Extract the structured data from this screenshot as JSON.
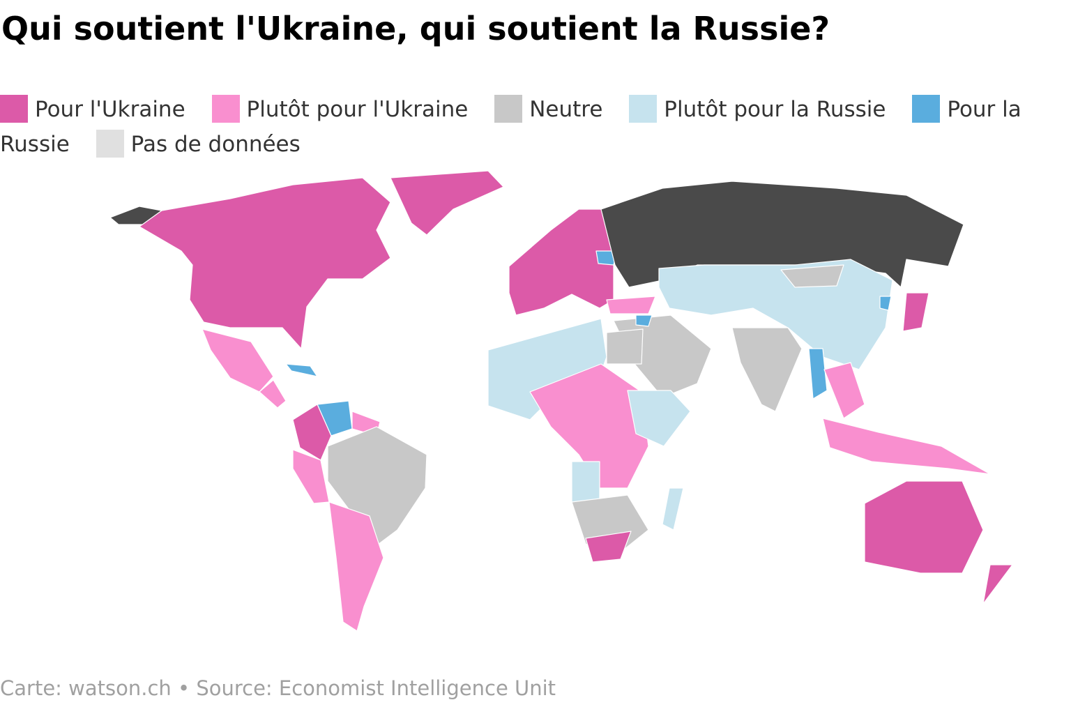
{
  "title": "Qui soutient l'Ukraine, qui soutient la Russie?",
  "legend": [
    {
      "label": "Pour l'Ukraine",
      "color": "#dc5aa8"
    },
    {
      "label": "Plutôt pour l'Ukraine",
      "color": "#f98fcf"
    },
    {
      "label": "Neutre",
      "color": "#c8c8c8"
    },
    {
      "label": "Plutôt pour la Russie",
      "color": "#c6e3ee"
    },
    {
      "label": "Pour la Russie",
      "color": "#5aadde"
    },
    {
      "label": "Pas de données",
      "color": "#e0e0e0"
    }
  ],
  "footer": "Carte: watson.ch • Source: Economist Intelligence Unit"
}
